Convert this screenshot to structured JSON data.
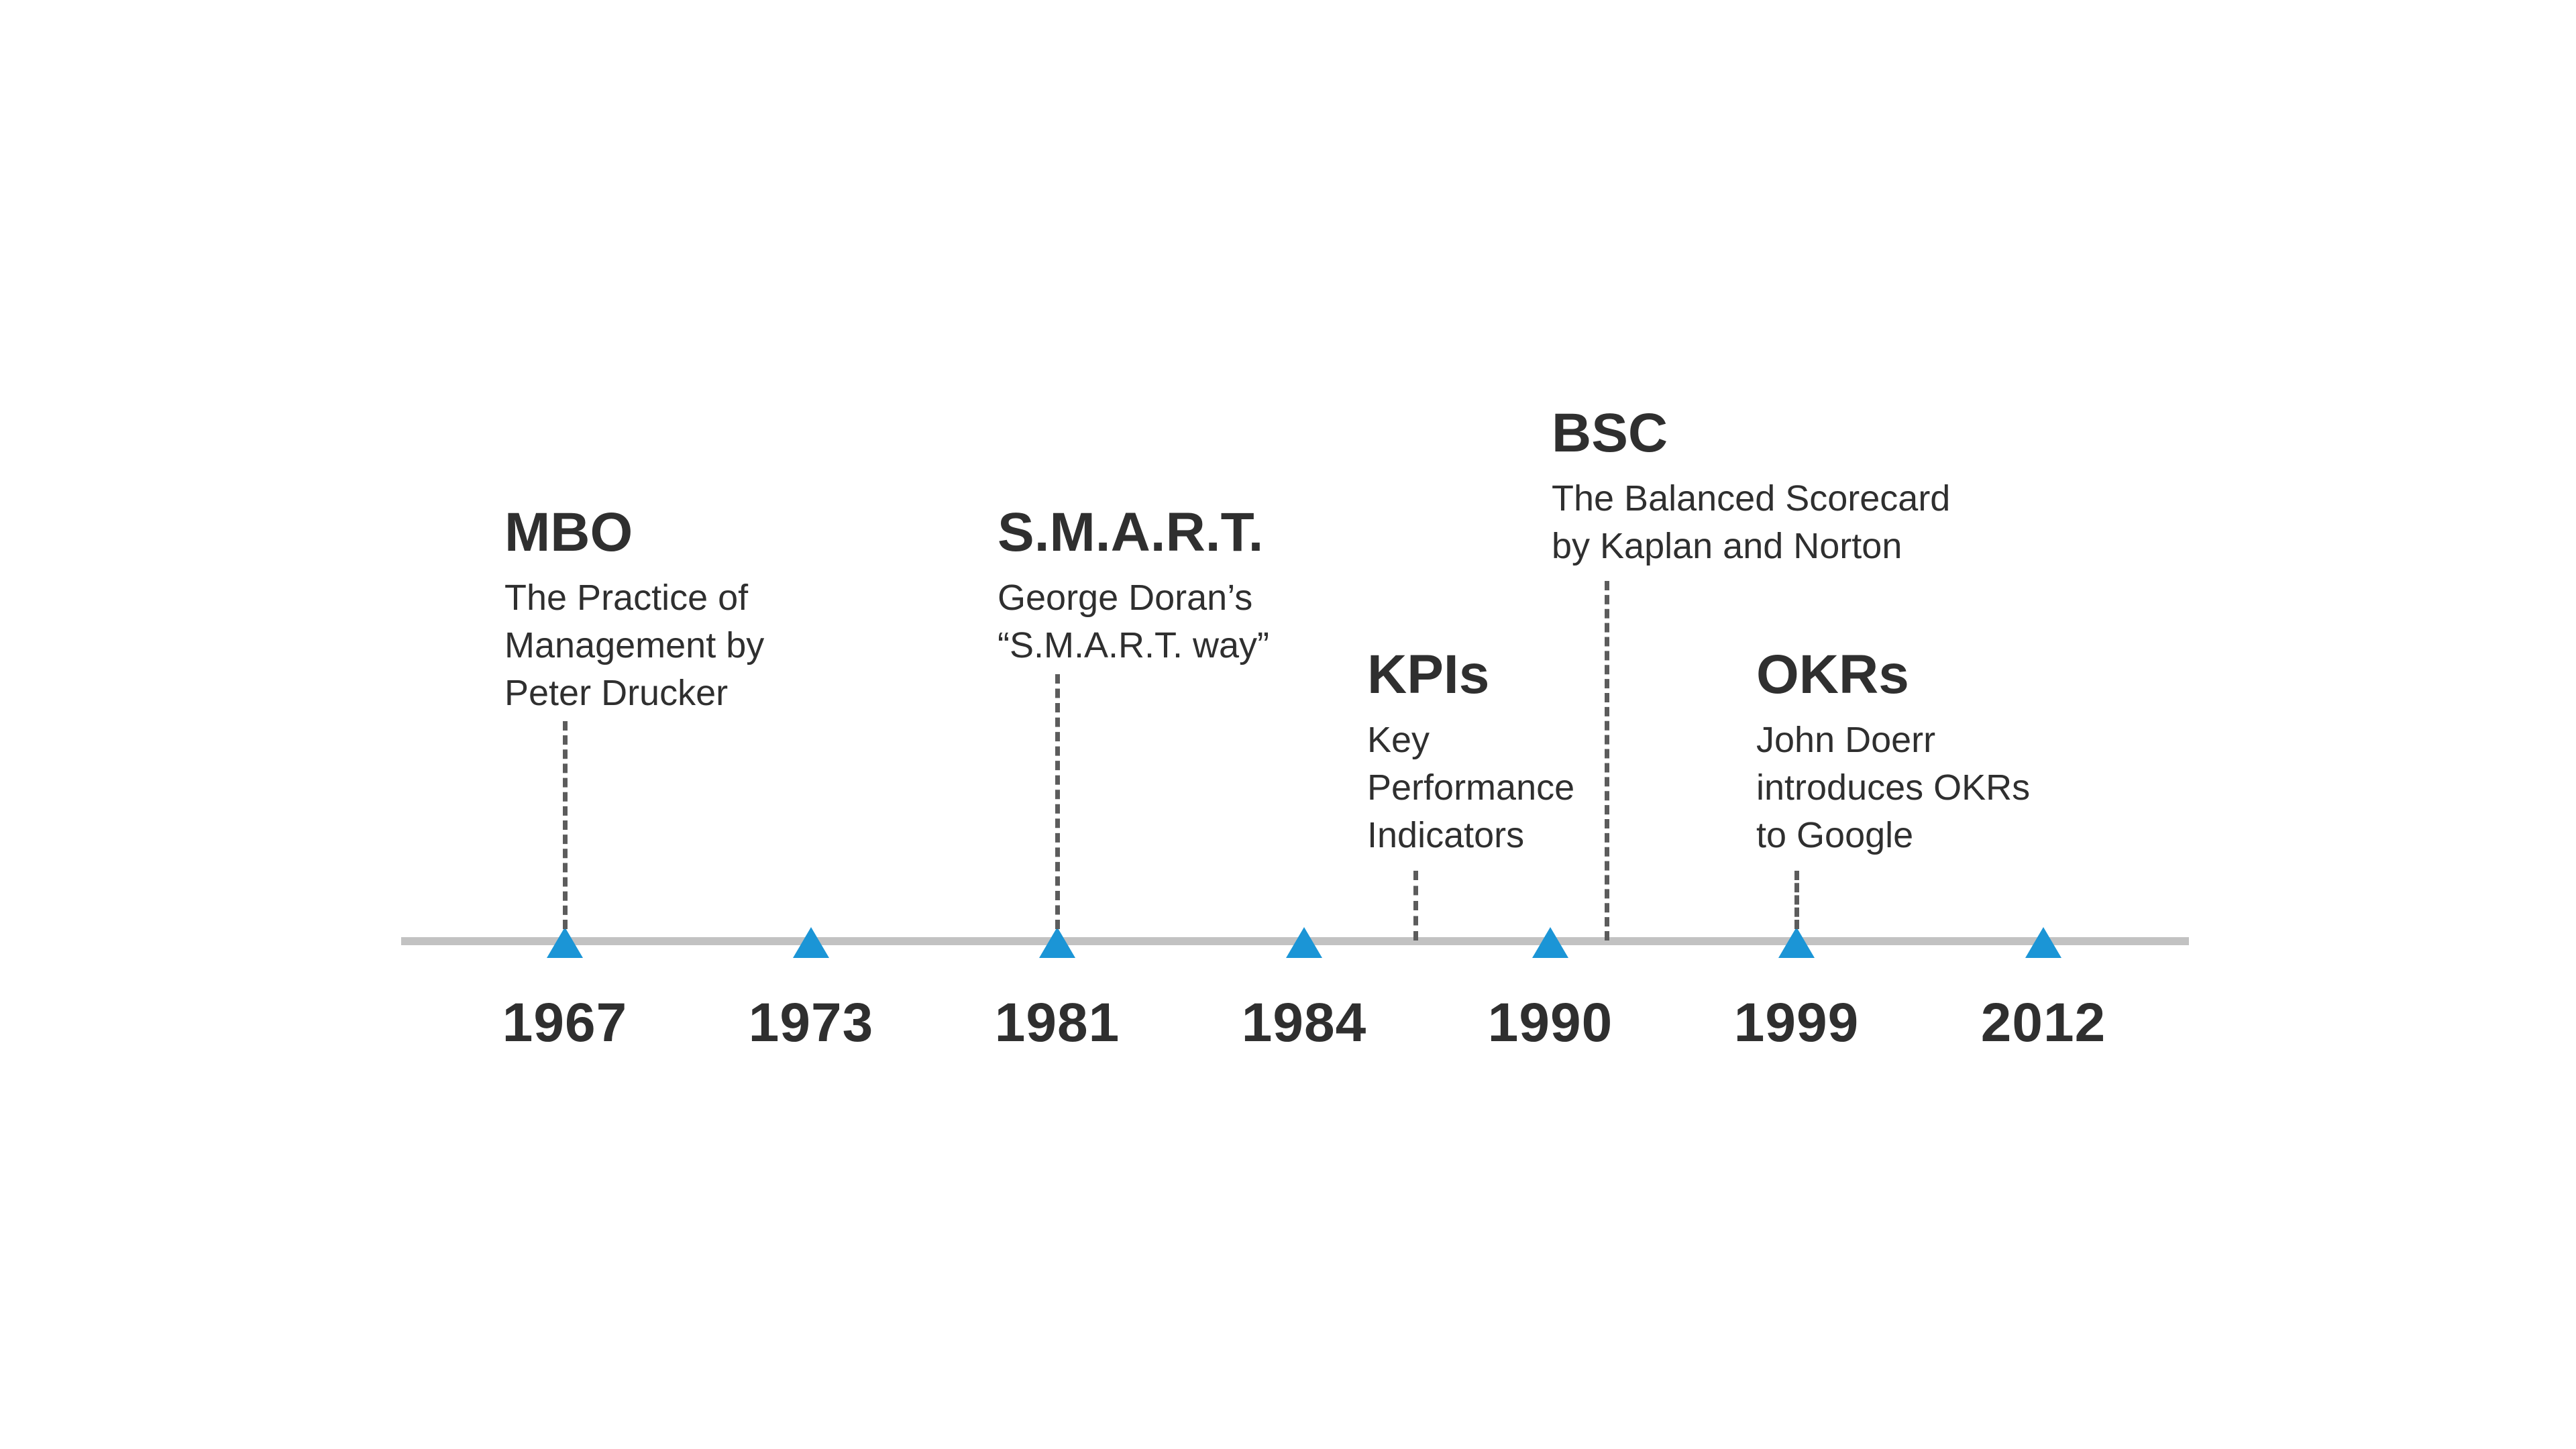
{
  "years": [
    "1967",
    "1973",
    "1981",
    "1984",
    "1990",
    "1999",
    "2012"
  ],
  "events": [
    {
      "id": "mbo",
      "title": "MBO",
      "lines": [
        "The Practice of",
        "Management by",
        "Peter Drucker"
      ]
    },
    {
      "id": "smart",
      "title": "S.M.A.R.T.",
      "lines": [
        "George Doran’s",
        "“S.M.A.R.T. way”"
      ]
    },
    {
      "id": "kpis",
      "title": "KPIs",
      "lines": [
        "Key",
        "Performance",
        "Indicators"
      ]
    },
    {
      "id": "bsc",
      "title": "BSC",
      "lines": [
        "The Balanced Scorecard",
        "by Kaplan and Norton"
      ]
    },
    {
      "id": "okrs",
      "title": "OKRs",
      "lines": [
        "John Doerr",
        "introduces OKRs",
        "to Google"
      ]
    }
  ],
  "colors": {
    "marker": "#1b95d6",
    "axis": "#c2c2c2",
    "text": "#2f2f2f",
    "connector": "#5c5c5c"
  }
}
